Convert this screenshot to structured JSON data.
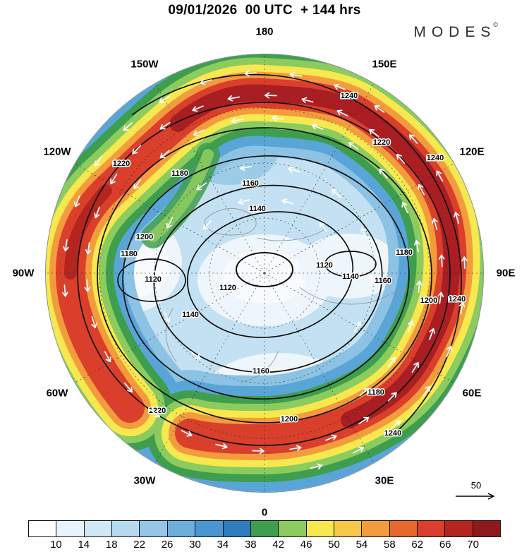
{
  "header": {
    "title": "09/01/2026  00 UTC  + 144 hrs",
    "brand": "MODES",
    "brand_mark": "©"
  },
  "map": {
    "lon_labels": [
      "180",
      "150W",
      "150E",
      "120W",
      "120E",
      "90W",
      "90E",
      "60W",
      "60E",
      "30W",
      "30E",
      "0"
    ],
    "contours": [
      "1120",
      "1140",
      "1160",
      "1180",
      "1200",
      "1220",
      "1240"
    ]
  },
  "scale": {
    "label": "50"
  },
  "colorbar": {
    "ticks": [
      "10",
      "14",
      "18",
      "22",
      "26",
      "30",
      "34",
      "38",
      "42",
      "46",
      "50",
      "54",
      "58",
      "62",
      "66",
      "70"
    ],
    "colors": [
      "#ffffff",
      "#e8f4fb",
      "#d0e8f6",
      "#b5daf0",
      "#93c6e7",
      "#6caedd",
      "#4a96d0",
      "#2f7dbf",
      "#3f9e4e",
      "#8ccb5e",
      "#f7e84f",
      "#f8c74a",
      "#f39c3d",
      "#e8672f",
      "#d93f2b",
      "#b3251f",
      "#8c1a1c"
    ]
  },
  "chart_data": {
    "type": "heatmap",
    "title": "09/01/2026 00 UTC + 144 hrs",
    "valid": "09/01/2026 00 UTC",
    "lead_hours": 144,
    "projection": "north polar stereographic",
    "shaded_field": {
      "name": "wind speed (shaded)",
      "levels": [
        10,
        14,
        18,
        22,
        26,
        30,
        34,
        38,
        42,
        46,
        50,
        54,
        58,
        62,
        66,
        70
      ],
      "palette": [
        "#ffffff",
        "#e8f4fb",
        "#d0e8f6",
        "#b5daf0",
        "#93c6e7",
        "#6caedd",
        "#4a96d0",
        "#2f7dbf",
        "#3f9e4e",
        "#8ccb5e",
        "#f7e84f",
        "#f8c74a",
        "#f39c3d",
        "#e8672f",
        "#d93f2b",
        "#b3251f",
        "#8c1a1c"
      ]
    },
    "contour_field": {
      "name": "geopotential height (black contours)",
      "levels": [
        1120,
        1140,
        1160,
        1180,
        1200,
        1220,
        1240
      ],
      "interval": 20,
      "minimum_near_pole": 1120,
      "maximum_near_rim": 1240
    },
    "vector_field": {
      "name": "wind vectors (white arrows)",
      "reference_value": 50
    },
    "ring_longitudes": [
      "180",
      "150W",
      "150E",
      "120W",
      "120E",
      "90W",
      "90E",
      "60W",
      "60E",
      "30W",
      "30E",
      "0"
    ],
    "legend_position": "bottom",
    "brand": "MODES©"
  }
}
